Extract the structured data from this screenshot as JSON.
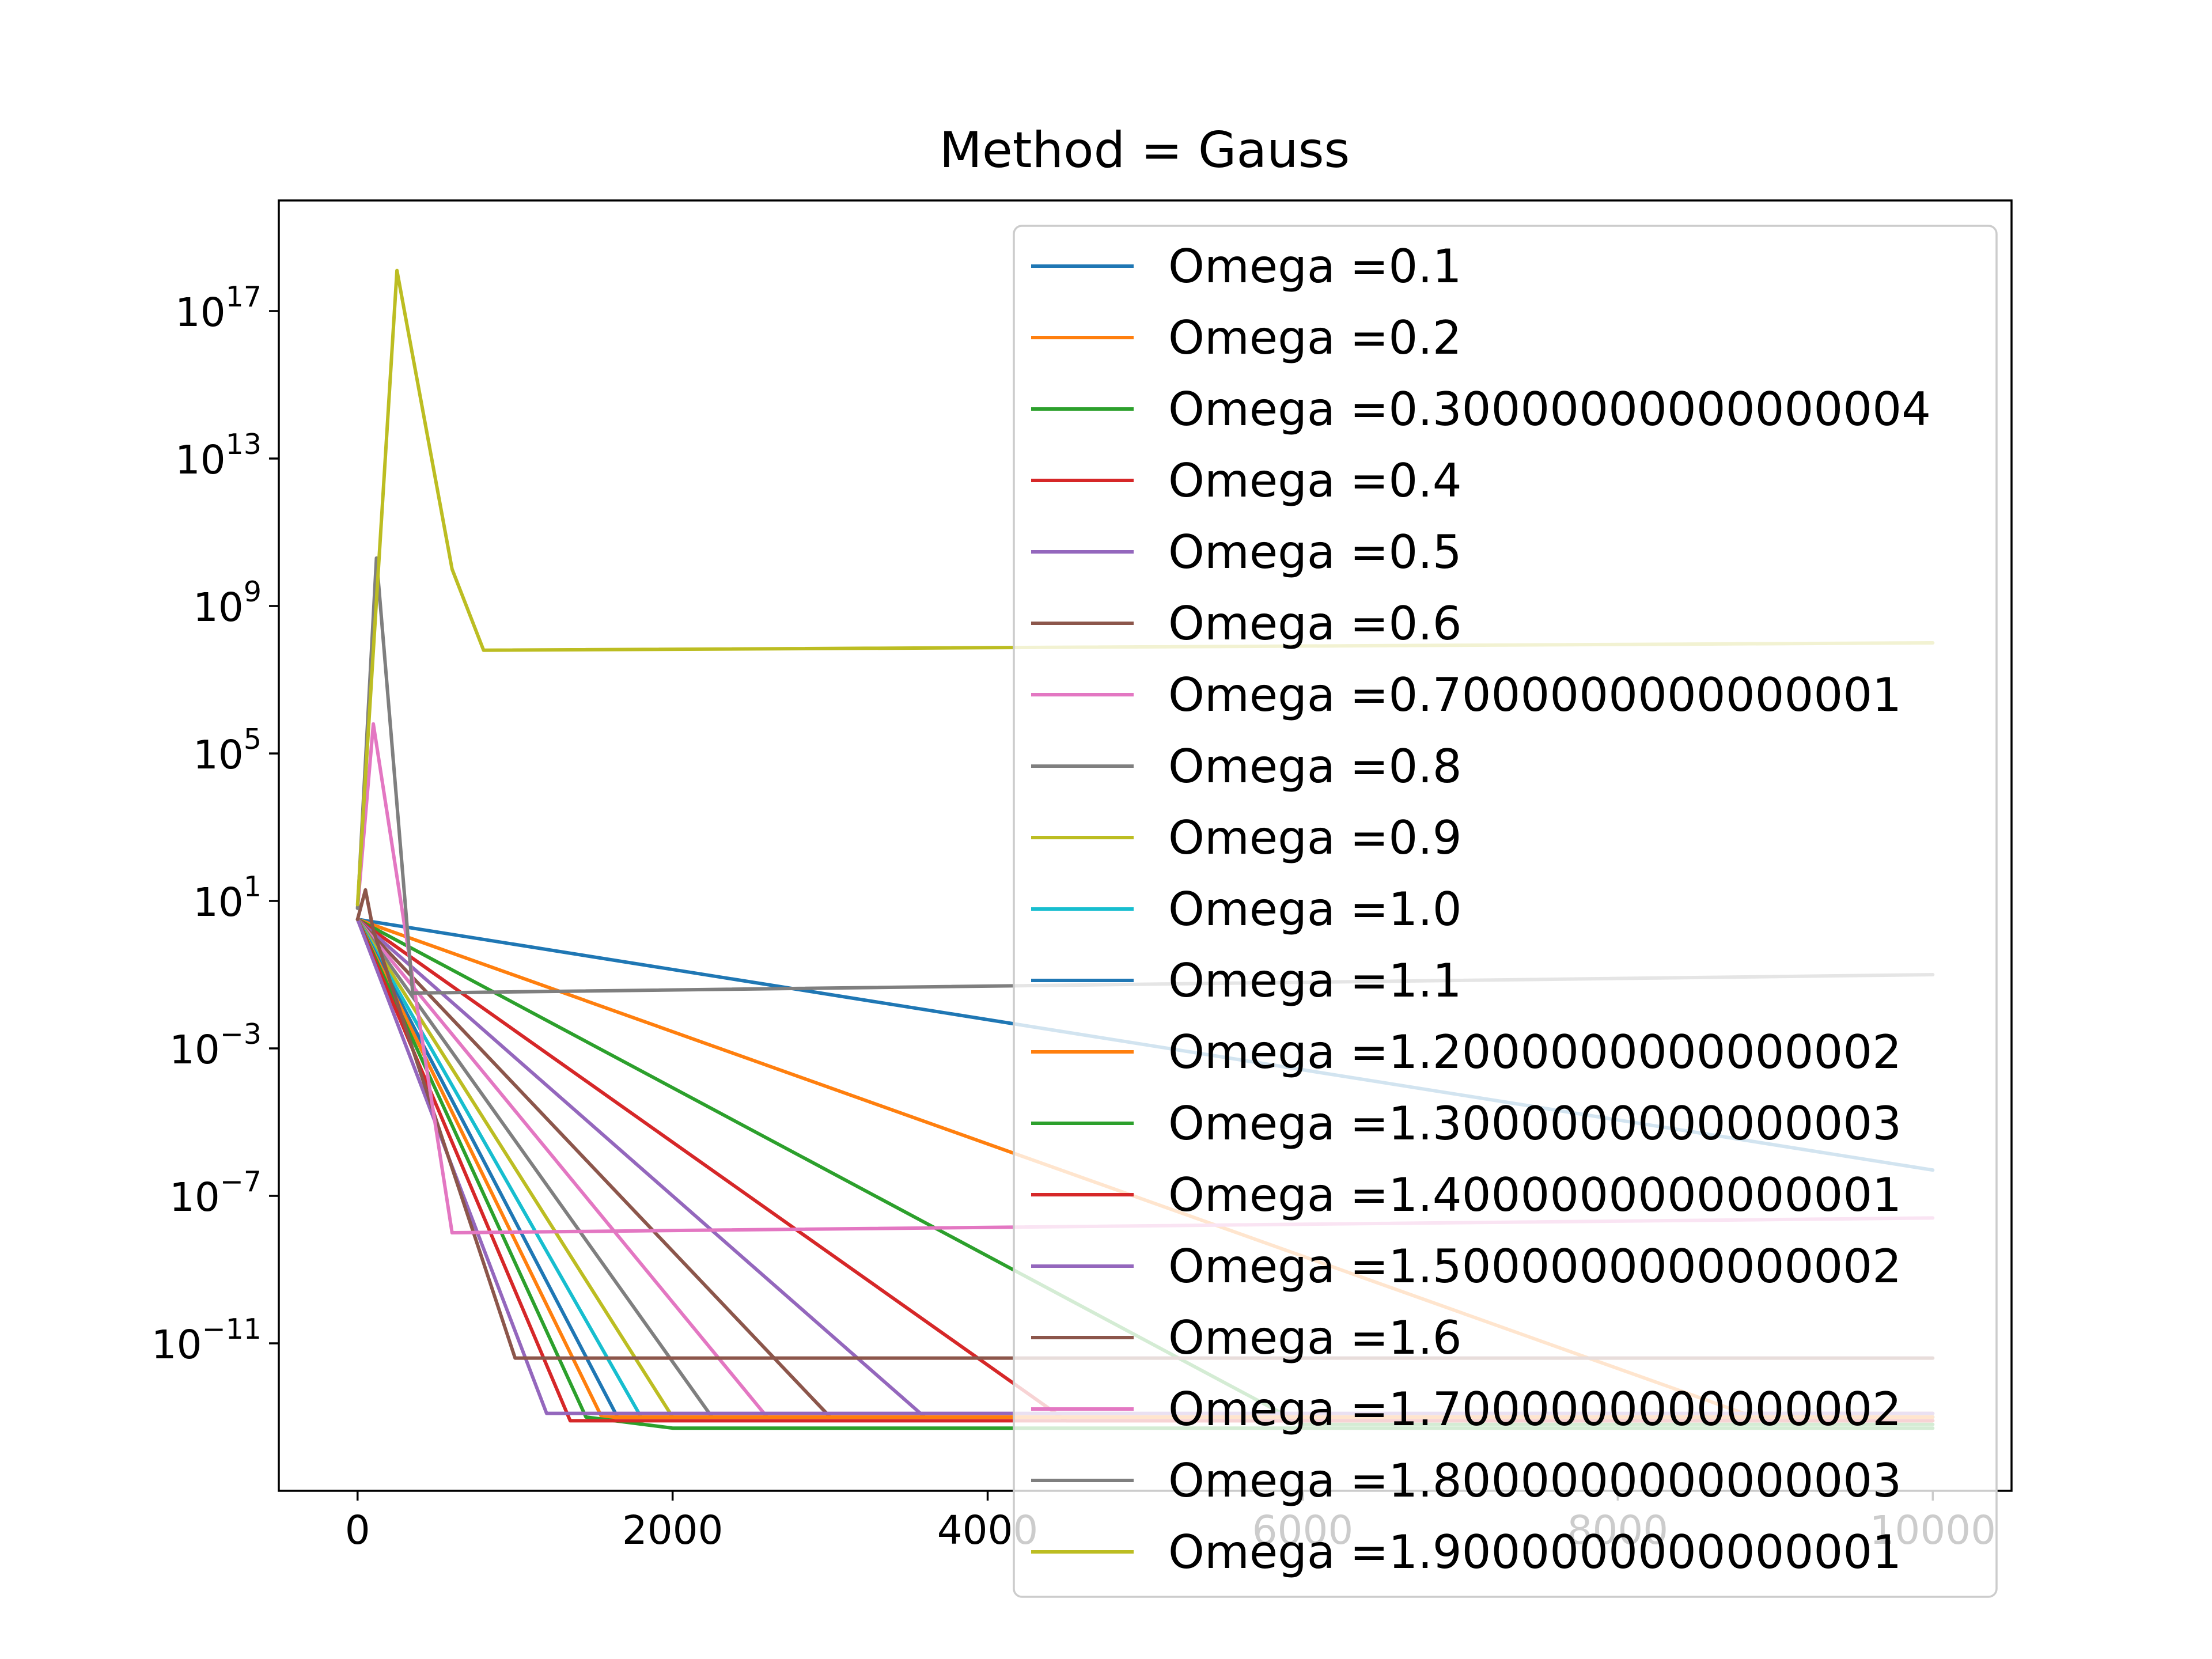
{
  "chart_data": {
    "type": "line",
    "title": "Method = Gauss",
    "xlabel": "",
    "ylabel": "",
    "xlim": [
      -500,
      10500
    ],
    "ylim": [
      1e-15,
      1e+20
    ],
    "yscale": "log",
    "x_ticks": [
      {
        "value": 0,
        "label": "0"
      },
      {
        "value": 2000,
        "label": "2000"
      },
      {
        "value": 4000,
        "label": "4000"
      },
      {
        "value": 6000,
        "label": "6000"
      },
      {
        "value": 8000,
        "label": "8000"
      },
      {
        "value": 10000,
        "label": "10000"
      }
    ],
    "y_ticks": [
      {
        "exp": 17,
        "base": "10",
        "sup": "17"
      },
      {
        "exp": 13,
        "base": "10",
        "sup": "13"
      },
      {
        "exp": 9,
        "base": "10",
        "sup": "9"
      },
      {
        "exp": 5,
        "base": "10",
        "sup": "5"
      },
      {
        "exp": 1,
        "base": "10",
        "sup": "1"
      },
      {
        "exp": -3,
        "base": "10",
        "sup": "−3"
      },
      {
        "exp": -7,
        "base": "10",
        "sup": "−7"
      },
      {
        "exp": -11,
        "base": "10",
        "sup": "−11"
      }
    ],
    "grid": false,
    "legend_position": "top-right",
    "series": [
      {
        "name": "Omega =0.1",
        "color": "#1f77b4",
        "x": [
          0,
          10000
        ],
        "log10_y": [
          0.5,
          -6.3
        ]
      },
      {
        "name": "Omega =0.2",
        "color": "#ff7f0e",
        "x": [
          0,
          8800,
          10000
        ],
        "log10_y": [
          0.5,
          -12.9,
          -12.9
        ]
      },
      {
        "name": "Omega =0.30000000000000004",
        "color": "#2ca02c",
        "x": [
          0,
          6000,
          10000
        ],
        "log10_y": [
          0.5,
          -13.2,
          -13.2
        ]
      },
      {
        "name": "Omega =0.4",
        "color": "#d62728",
        "x": [
          0,
          4500,
          10000
        ],
        "log10_y": [
          0.5,
          -13.1,
          -13.1
        ]
      },
      {
        "name": "Omega =0.5",
        "color": "#9467bd",
        "x": [
          0,
          3600,
          10000
        ],
        "log10_y": [
          0.5,
          -13.0,
          -13.0
        ]
      },
      {
        "name": "Omega =0.6",
        "color": "#8c564b",
        "x": [
          0,
          3000,
          10000
        ],
        "log10_y": [
          0.5,
          -13.0,
          -13.0
        ]
      },
      {
        "name": "Omega =0.7000000000000001",
        "color": "#e377c2",
        "x": [
          0,
          2600,
          10000
        ],
        "log10_y": [
          0.5,
          -13.0,
          -13.0
        ]
      },
      {
        "name": "Omega =0.8",
        "color": "#7f7f7f",
        "x": [
          0,
          2250,
          10000
        ],
        "log10_y": [
          0.5,
          -13.0,
          -13.0
        ]
      },
      {
        "name": "Omega =0.9",
        "color": "#bcbd22",
        "x": [
          0,
          2000,
          10000
        ],
        "log10_y": [
          0.5,
          -13.0,
          -13.0
        ]
      },
      {
        "name": "Omega =1.0",
        "color": "#17becf",
        "x": [
          0,
          1800,
          10000
        ],
        "log10_y": [
          0.5,
          -13.0,
          -13.0
        ]
      },
      {
        "name": "Omega =1.1",
        "color": "#1f77b4",
        "x": [
          0,
          1650,
          10000
        ],
        "log10_y": [
          0.5,
          -13.0,
          -13.0
        ]
      },
      {
        "name": "Omega =1.2000000000000002",
        "color": "#ff7f0e",
        "x": [
          0,
          1550,
          10000
        ],
        "log10_y": [
          0.5,
          -13.0,
          -13.0
        ]
      },
      {
        "name": "Omega =1.3000000000000003",
        "color": "#2ca02c",
        "x": [
          0,
          1450,
          2000,
          10000
        ],
        "log10_y": [
          0.5,
          -13.0,
          -13.3,
          -13.3
        ]
      },
      {
        "name": "Omega =1.4000000000000001",
        "color": "#d62728",
        "x": [
          0,
          1350,
          10000
        ],
        "log10_y": [
          0.5,
          -13.1,
          -13.1
        ]
      },
      {
        "name": "Omega =1.5000000000000002",
        "color": "#9467bd",
        "x": [
          0,
          1200,
          10000
        ],
        "log10_y": [
          0.5,
          -12.9,
          -12.9
        ]
      },
      {
        "name": "Omega =1.6",
        "color": "#8c564b",
        "x": [
          0,
          50,
          100,
          1000,
          10000
        ],
        "log10_y": [
          0.5,
          1.3,
          0.2,
          -11.4,
          -11.4
        ]
      },
      {
        "name": "Omega =1.7000000000000002",
        "color": "#e377c2",
        "x": [
          0,
          100,
          600,
          10000
        ],
        "log10_y": [
          0.8,
          5.8,
          -8.0,
          -7.6
        ]
      },
      {
        "name": "Omega =1.8000000000000003",
        "color": "#7f7f7f",
        "x": [
          0,
          120,
          350,
          10000
        ],
        "log10_y": [
          0.8,
          10.3,
          -1.5,
          -1.0
        ]
      },
      {
        "name": "Omega =1.9000000000000001",
        "color": "#bcbd22",
        "x": [
          0,
          250,
          600,
          800,
          10000
        ],
        "log10_y": [
          0.9,
          18.1,
          10.0,
          7.8,
          8.0
        ]
      }
    ]
  }
}
